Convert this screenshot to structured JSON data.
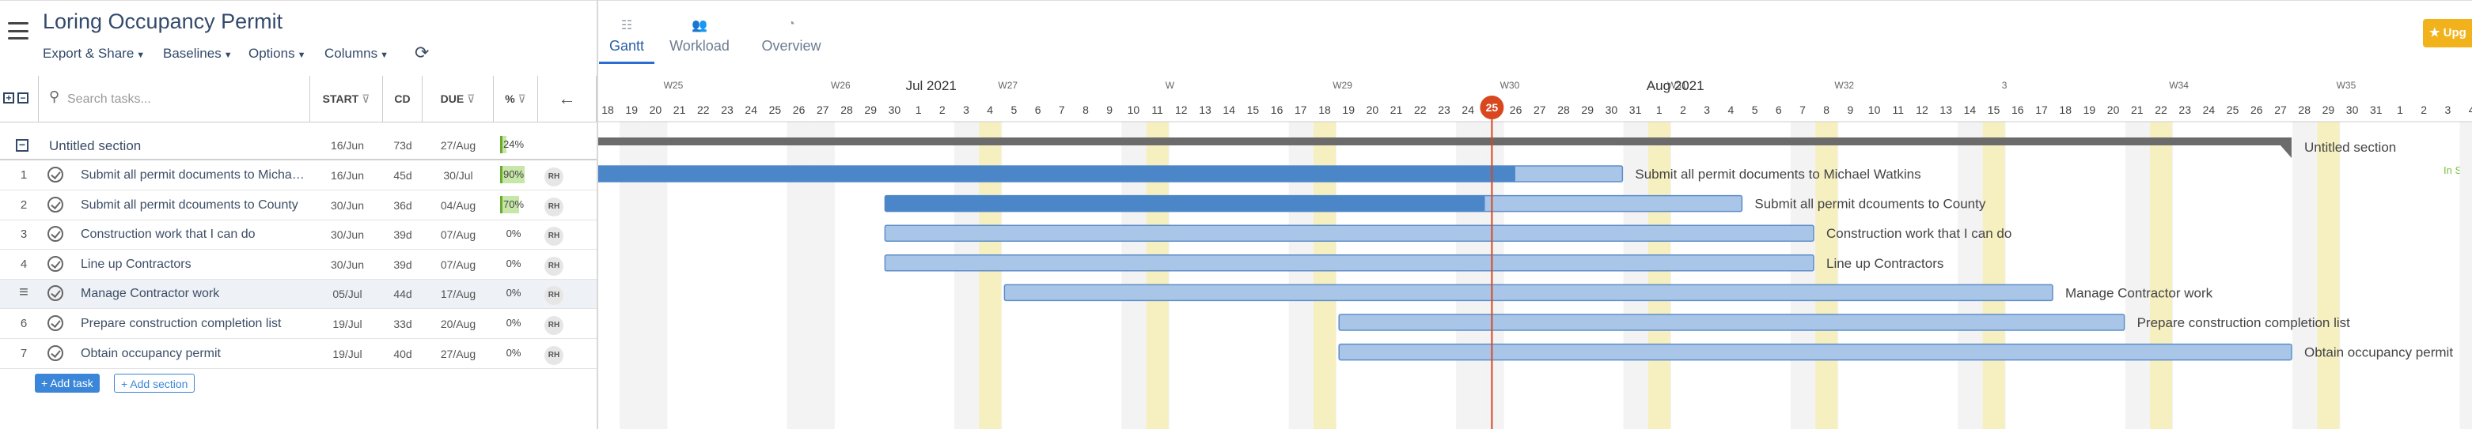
{
  "app": {
    "title": "Loring Occupancy Permit"
  },
  "menus": [
    {
      "label": "Export & Share"
    },
    {
      "label": "Baselines"
    },
    {
      "label": "Options"
    },
    {
      "label": "Columns"
    }
  ],
  "icons": {
    "hamburger": "menu-icon",
    "refresh": "refresh-icon",
    "search": "search-icon",
    "collapse": "arrow-left-icon",
    "expand_all": "plus-square-icon",
    "collapse_all": "minus-square-icon",
    "check": "check-circle-icon",
    "drag": "drag-handle-icon"
  },
  "view_tabs": [
    {
      "label": "Gantt",
      "icon": "gantt-icon",
      "active": true
    },
    {
      "label": "Workload",
      "icon": "users-icon",
      "active": false
    },
    {
      "label": "Overview",
      "icon": "dashboard-icon",
      "active": false
    }
  ],
  "upgrade": {
    "label": "Upg"
  },
  "side_note": "In Sy",
  "grid": {
    "search_placeholder": "Search tasks...",
    "columns": {
      "start": "START",
      "cd": "CD",
      "due": "DUE",
      "pct": "%"
    },
    "section": {
      "name": "Untitled section",
      "start": "16/Jun",
      "cd": "73d",
      "due": "27/Aug",
      "pct": "24%"
    },
    "tasks": [
      {
        "num": "1",
        "name": "Submit all permit documents to Michael Watkins",
        "start": "16/Jun",
        "cd": "45d",
        "due": "30/Jul",
        "pct": "90%",
        "progress": 0.9,
        "assignee": "RH"
      },
      {
        "num": "2",
        "name": "Submit all permit dcouments to County",
        "start": "30/Jun",
        "cd": "36d",
        "due": "04/Aug",
        "pct": "70%",
        "progress": 0.7,
        "assignee": "RH"
      },
      {
        "num": "3",
        "name": "Construction work that I can do",
        "start": "30/Jun",
        "cd": "39d",
        "due": "07/Aug",
        "pct": "0%",
        "progress": 0,
        "assignee": "RH"
      },
      {
        "num": "4",
        "name": "Line up Contractors",
        "start": "30/Jun",
        "cd": "39d",
        "due": "07/Aug",
        "pct": "0%",
        "progress": 0,
        "assignee": "RH"
      },
      {
        "num": "",
        "name": "Manage Contractor work",
        "start": "05/Jul",
        "cd": "44d",
        "due": "17/Aug",
        "pct": "0%",
        "progress": 0,
        "assignee": "RH"
      },
      {
        "num": "6",
        "name": "Prepare construction completion list",
        "start": "19/Jul",
        "cd": "33d",
        "due": "20/Aug",
        "pct": "0%",
        "progress": 0,
        "assignee": "RH"
      },
      {
        "num": "7",
        "name": "Obtain occupancy permit",
        "start": "19/Jul",
        "cd": "40d",
        "due": "27/Aug",
        "pct": "0%",
        "progress": 0,
        "assignee": "RH"
      }
    ],
    "add_task": "Add task",
    "add_section": "Add section"
  },
  "timeline": {
    "start_date": "2021-06-18",
    "months": [
      {
        "label": "Jul 2021",
        "date": "2021-07-01"
      },
      {
        "label": "Aug 2021",
        "date": "2021-08-01"
      }
    ],
    "weeks": [
      {
        "label": "W25",
        "date": "2021-06-21"
      },
      {
        "label": "W26",
        "date": "2021-06-28"
      },
      {
        "label": "W27",
        "date": "2021-07-05"
      },
      {
        "label": "W",
        "date": "2021-07-12"
      },
      {
        "label": "W29",
        "date": "2021-07-19"
      },
      {
        "label": "W30",
        "date": "2021-07-26"
      },
      {
        "label": "W31",
        "date": "2021-08-02"
      },
      {
        "label": "W32",
        "date": "2021-08-09"
      },
      {
        "label": "3",
        "date": "2021-08-16"
      },
      {
        "label": "W34",
        "date": "2021-08-23"
      },
      {
        "label": "W35",
        "date": "2021-08-30"
      }
    ],
    "today": {
      "label": "25",
      "date": "2021-07-25"
    },
    "marker_days": [
      "2021-07-04",
      "2021-07-11",
      "2021-07-18",
      "2021-08-01",
      "2021-08-08",
      "2021-08-15",
      "2021-08-22",
      "2021-08-29"
    ],
    "colors": {
      "bar": "#a9c6e8",
      "bar_border": "#5e8ec7",
      "progress": "#4a86c8",
      "today": "#d9471f",
      "section": "#6b6b6b",
      "weekend": "#f3f3f3",
      "marker": "#f6efc0"
    }
  }
}
